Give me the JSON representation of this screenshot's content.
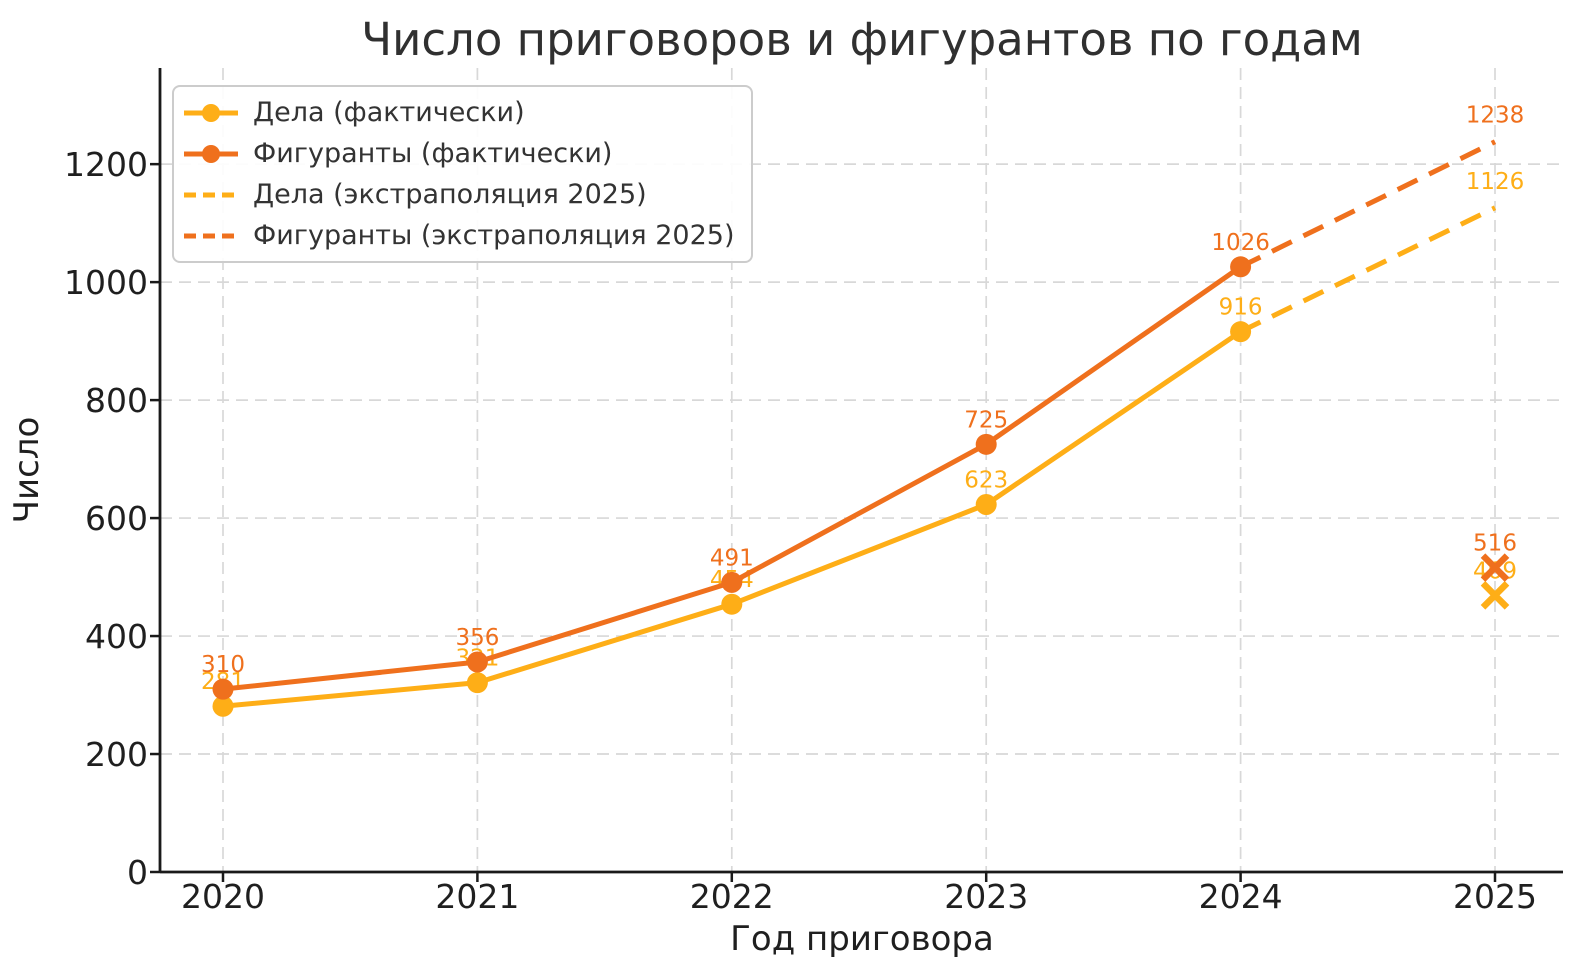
{
  "chart_data": {
    "type": "line",
    "title": "Число приговоров и фигурантов по годам",
    "xlabel": "Год приговора",
    "ylabel": "Число",
    "x_ticks": [
      2020,
      2021,
      2022,
      2023,
      2024,
      2025
    ],
    "y_ticks": [
      0,
      200,
      400,
      600,
      800,
      1000,
      1200
    ],
    "ylim": [
      0,
      1363
    ],
    "grid": true,
    "legend_position": "upper left",
    "series": [
      {
        "name": "Дела (фактически)",
        "line": "solid",
        "marker": "circle",
        "color": "#FEAE17",
        "x": [
          2020,
          2021,
          2022,
          2023,
          2024
        ],
        "values": [
          281,
          321,
          454,
          623,
          916
        ]
      },
      {
        "name": "Фигуранты (фактически)",
        "line": "solid",
        "marker": "circle",
        "color": "#EF701D",
        "x": [
          2020,
          2021,
          2022,
          2023,
          2024
        ],
        "values": [
          310,
          356,
          491,
          725,
          1026
        ]
      },
      {
        "name": "Дела (экстраполяция 2025)",
        "line": "dashed",
        "marker": "none",
        "color": "#FEAE17",
        "x": [
          2024,
          2025
        ],
        "values": [
          916,
          1126
        ],
        "label_point": {
          "x": 2025,
          "value": 1126
        }
      },
      {
        "name": "Фигуранты (экстраполяция 2025)",
        "line": "dashed",
        "marker": "none",
        "color": "#EF701D",
        "x": [
          2024,
          2025
        ],
        "values": [
          1026,
          1238
        ],
        "label_point": {
          "x": 2025,
          "value": 1238
        }
      }
    ],
    "scatter_points": [
      {
        "x": 2025,
        "value": 469,
        "label": 469,
        "color": "#FEAE17",
        "marker": "x"
      },
      {
        "x": 2025,
        "value": 516,
        "label": 516,
        "color": "#EF701D",
        "marker": "x"
      }
    ],
    "colors": {
      "grid": "#d8d8d8",
      "axis": "#1a1a1a",
      "text": "#333333"
    }
  }
}
